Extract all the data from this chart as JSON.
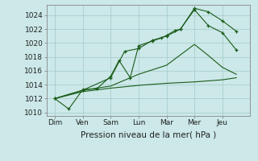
{
  "background_color": "#cce8e8",
  "grid_color": "#aacece",
  "line_color": "#1a5c1a",
  "title": "Pression niveau de la mer( hPa )",
  "ylim": [
    1009.5,
    1025.5
  ],
  "yticks": [
    1010,
    1012,
    1014,
    1016,
    1018,
    1020,
    1022,
    1024
  ],
  "days": [
    "Dim",
    "Ven",
    "Sam",
    "Lun",
    "Mar",
    "Mer",
    "Jeu"
  ],
  "xtick_positions": [
    0,
    1,
    2,
    3,
    4,
    5,
    6
  ],
  "xlim": [
    -0.3,
    7.0
  ],
  "line_peak_x": [
    0,
    0.5,
    1.0,
    1.5,
    2.0,
    2.3,
    2.7,
    3.0,
    3.5,
    3.8,
    4.0,
    4.3,
    4.5,
    5.0,
    5.5,
    6.0,
    6.5
  ],
  "line_peak_y": [
    1012,
    1010.5,
    1013.3,
    1013.4,
    1015.2,
    1017.5,
    1015.0,
    1019.6,
    1020.3,
    1020.7,
    1021.1,
    1021.8,
    1022.0,
    1025.0,
    1024.5,
    1023.2,
    1021.7
  ],
  "line_mid_x": [
    0,
    1.0,
    2.0,
    2.5,
    3.0,
    3.5,
    4.0,
    4.5,
    5.0,
    5.5,
    6.0,
    6.5
  ],
  "line_mid_y": [
    1012,
    1013.2,
    1015.0,
    1018.8,
    1019.2,
    1020.4,
    1021.0,
    1022.0,
    1024.8,
    1022.5,
    1021.5,
    1019.0
  ],
  "line_diag_x": [
    0,
    1.0,
    2.0,
    3.0,
    4.0,
    5.0,
    5.5,
    6.0,
    6.5
  ],
  "line_diag_y": [
    1012,
    1013.2,
    1013.8,
    1015.5,
    1016.8,
    1019.8,
    1018.2,
    1016.5,
    1015.5
  ],
  "line_flat_x": [
    0,
    1.0,
    2.0,
    3.0,
    4.0,
    5.0,
    6.0,
    6.5
  ],
  "line_flat_y": [
    1012,
    1013.0,
    1013.5,
    1013.9,
    1014.2,
    1014.4,
    1014.7,
    1015.0
  ]
}
